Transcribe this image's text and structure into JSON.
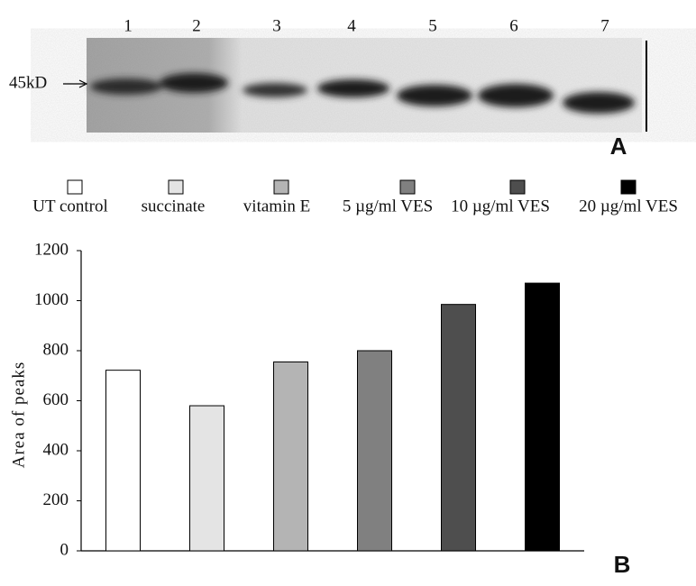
{
  "blot": {
    "lanes": [
      "1",
      "2",
      "3",
      "4",
      "5",
      "6",
      "7"
    ],
    "marker": "45kD",
    "panel_label": "A"
  },
  "chart_data": {
    "type": "bar",
    "panel_label": "B",
    "y_label": "Area of peaks",
    "categories": [
      "UT control",
      "succinate",
      "vitamin E",
      "5 µg/ml VES",
      "10 µg/ml VES",
      "20 µg/ml VES"
    ],
    "values": [
      722,
      580,
      755,
      800,
      985,
      1070
    ],
    "colors": [
      "#ffffff",
      "#e4e4e4",
      "#b4b4b4",
      "#808080",
      "#4e4e4e",
      "#000000"
    ],
    "ylim": [
      0,
      1200
    ],
    "yticks": [
      0,
      200,
      400,
      600,
      800,
      1000,
      1200
    ],
    "grid": false
  }
}
